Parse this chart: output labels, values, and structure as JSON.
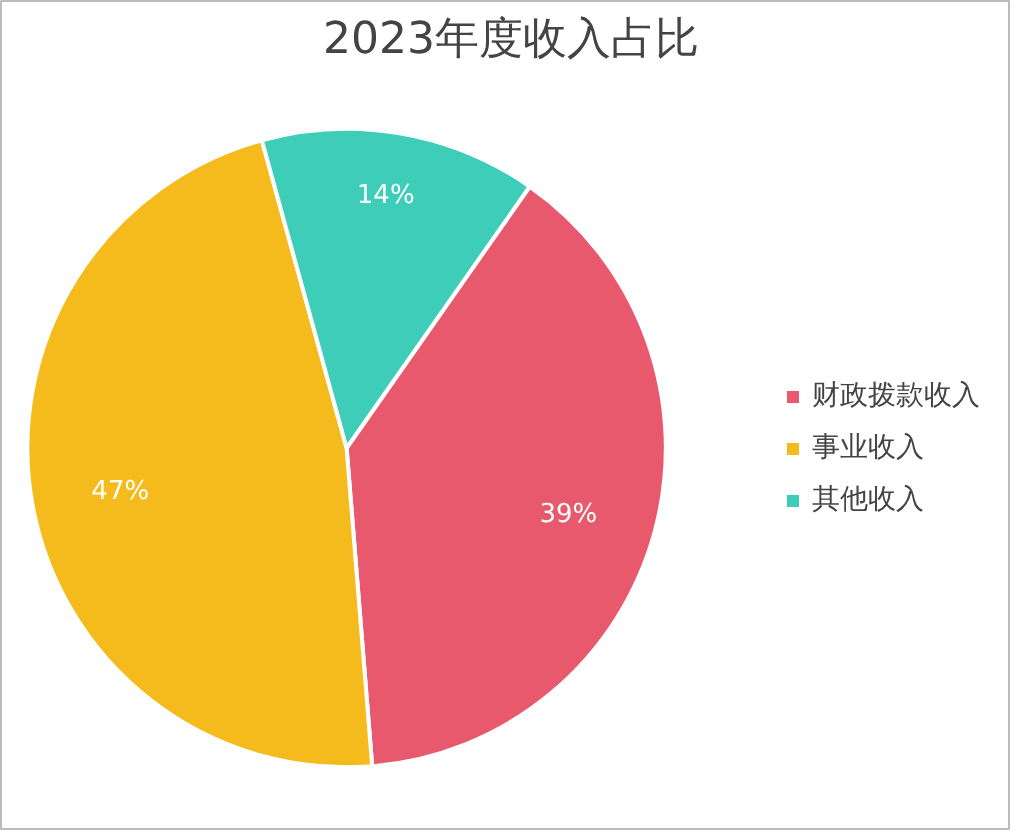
{
  "chart_data": {
    "type": "pie",
    "title": "2023年度收入占比",
    "categories": [
      "财政拨款收入",
      "事业收入",
      "其他收入"
    ],
    "values": [
      39,
      47,
      14
    ],
    "colors": [
      "#e8596e",
      "#f5bb1d",
      "#3ecdb8"
    ],
    "value_labels": [
      "39%",
      "47%",
      "14%"
    ],
    "legend": "right"
  }
}
